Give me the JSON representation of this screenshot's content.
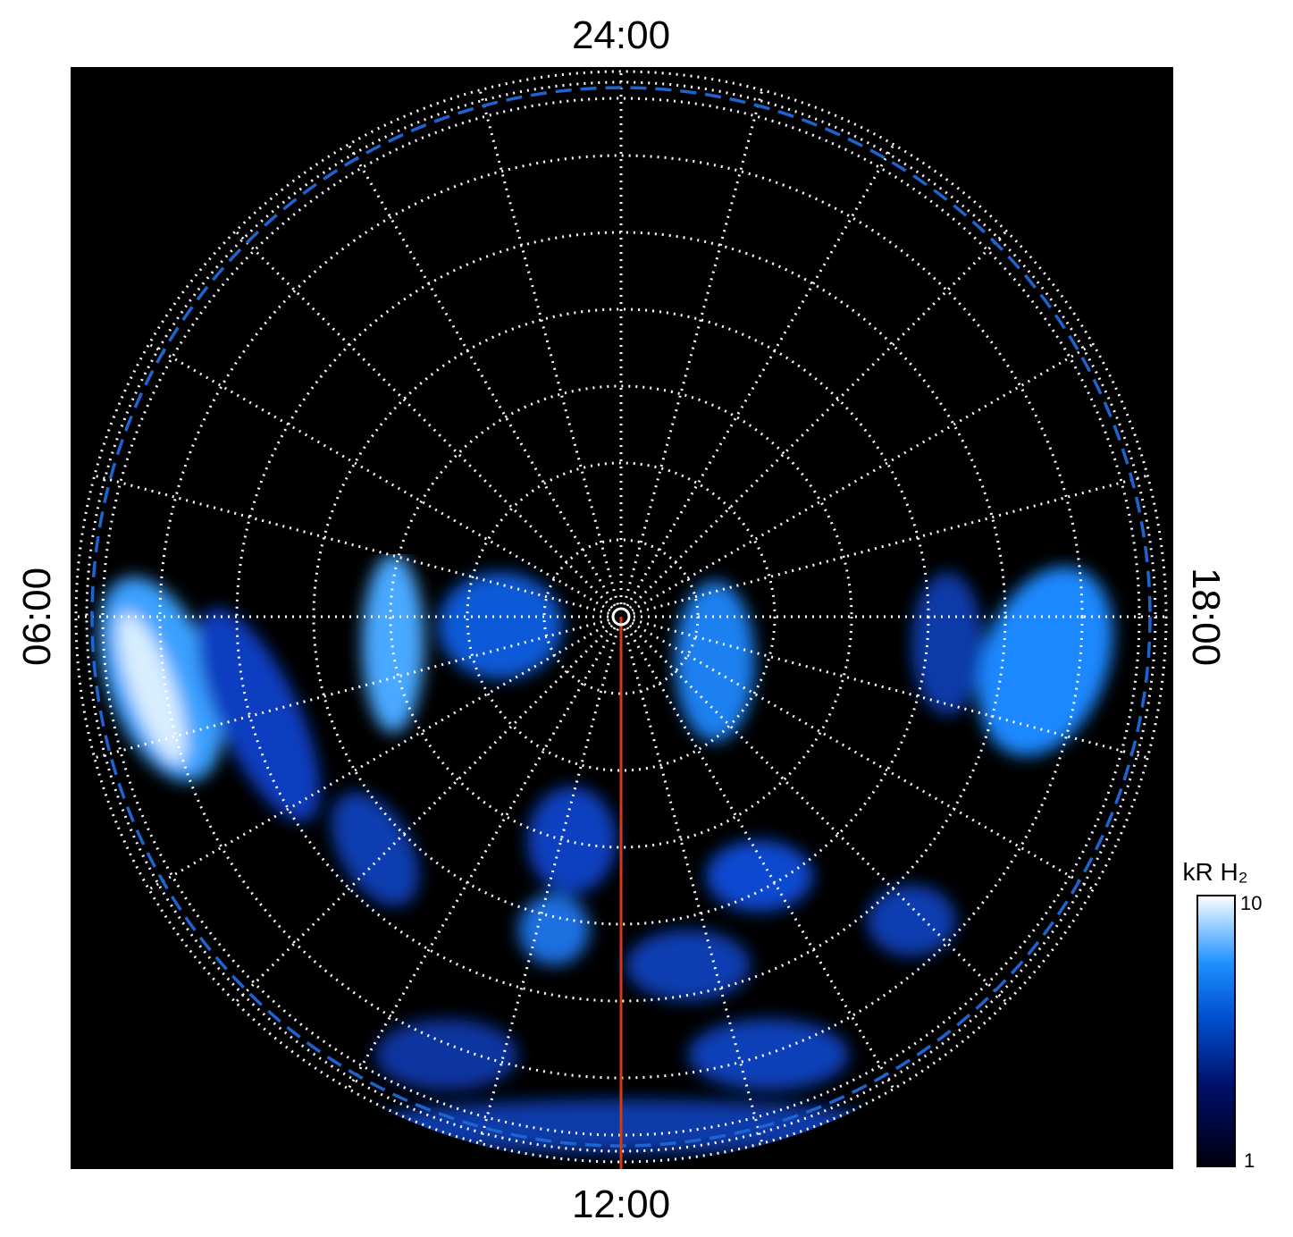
{
  "labels": {
    "top": "24:00",
    "bottom": "12:00",
    "left": "06:00",
    "right": "18:00"
  },
  "colorbar": {
    "title": "kR H₂",
    "max": "10",
    "min": "1"
  }
}
